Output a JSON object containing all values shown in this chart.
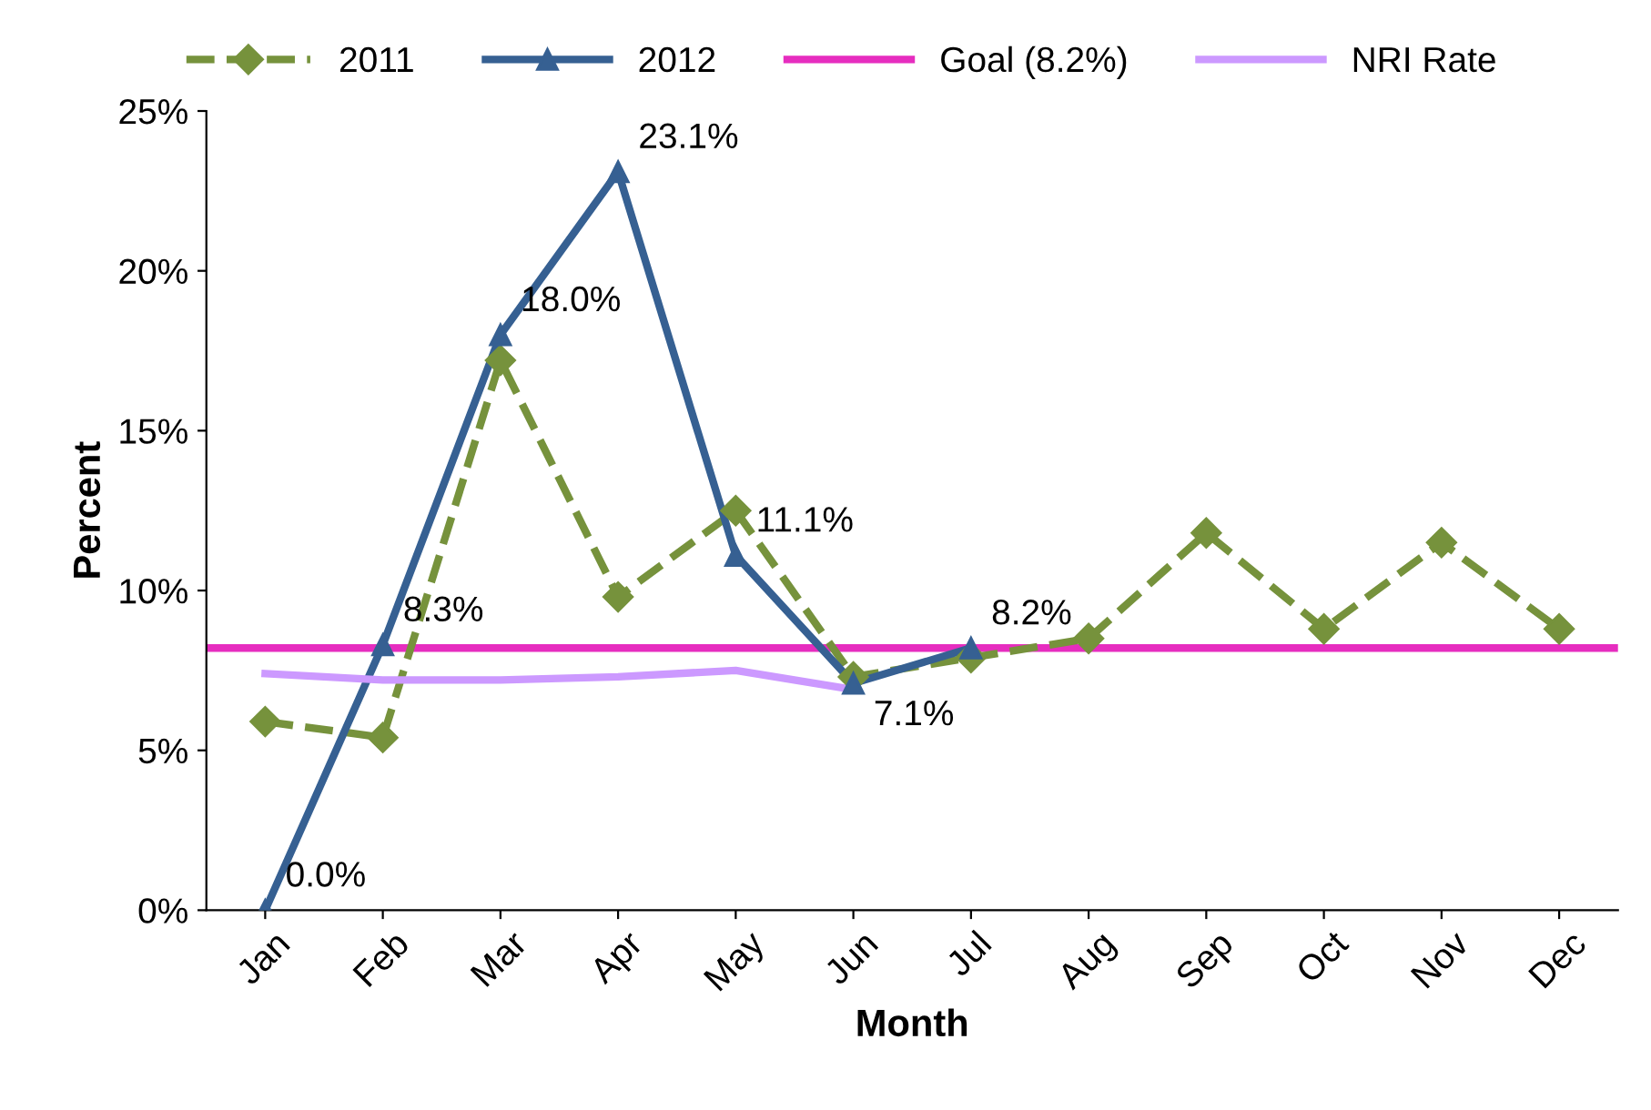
{
  "chart_data": {
    "type": "line",
    "xlabel": "Month",
    "ylabel": "Percent",
    "categories": [
      "Jan",
      "Feb",
      "Mar",
      "Apr",
      "May",
      "Jun",
      "Jul",
      "Aug",
      "Sep",
      "Oct",
      "Nov",
      "Dec"
    ],
    "series": [
      {
        "name": "2011",
        "color": "#76923c",
        "marker": "diamond",
        "line_style": "dashed",
        "values": [
          5.9,
          5.4,
          17.2,
          9.8,
          12.5,
          7.3,
          7.9,
          8.5,
          11.8,
          8.8,
          11.5,
          8.8
        ]
      },
      {
        "name": "2012",
        "color": "#366092",
        "marker": "triangle",
        "line_style": "solid",
        "values": [
          0.0,
          8.3,
          18.0,
          23.1,
          11.1,
          7.1,
          8.2,
          null,
          null,
          null,
          null,
          null
        ],
        "value_labels": [
          "0.0%",
          "8.3%",
          "18.0%",
          "23.1%",
          "11.1%",
          "7.1%",
          "8.2%",
          null,
          null,
          null,
          null,
          null
        ]
      },
      {
        "name": "NRI Rate",
        "color": "#cc99ff",
        "marker": "none",
        "line_style": "solid",
        "values": [
          7.4,
          7.2,
          7.2,
          7.3,
          7.5,
          6.9,
          null,
          null,
          null,
          null,
          null,
          null
        ]
      }
    ],
    "ref_lines": [
      {
        "axis": "y",
        "value": 8.2,
        "label": "Goal (8.2%)",
        "color": "#e62dbf",
        "line_style": "solid"
      }
    ],
    "ylim": [
      0,
      25
    ],
    "yticks": [
      {
        "value": 0,
        "label": "0%"
      },
      {
        "value": 5,
        "label": "5%"
      },
      {
        "value": 10,
        "label": "10%"
      },
      {
        "value": 15,
        "label": "15%"
      },
      {
        "value": 20,
        "label": "20%"
      },
      {
        "value": 25,
        "label": "25%"
      }
    ],
    "grid": false,
    "legend": "top"
  }
}
